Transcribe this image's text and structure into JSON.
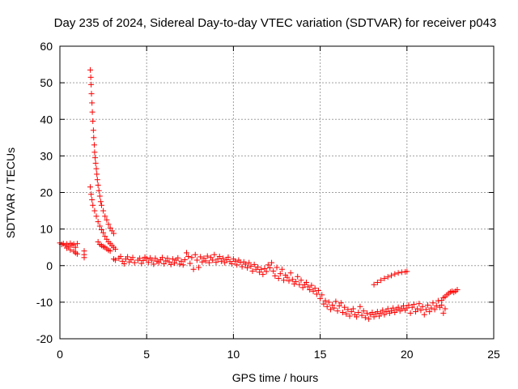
{
  "chart_data": {
    "type": "scatter",
    "title": "Day 235 of 2024, Sidereal Day-to-day VTEC variation (SDTVAR) for receiver p043",
    "xlabel": "GPS time / hours",
    "ylabel": "SDTVAR / TECUs",
    "xlim": [
      0,
      25
    ],
    "ylim": [
      -20,
      60
    ],
    "xticks": [
      0,
      5,
      10,
      15,
      20,
      25
    ],
    "yticks": [
      -20,
      -10,
      0,
      10,
      20,
      30,
      40,
      50,
      60
    ],
    "grid": true,
    "marker": "+",
    "color": "#ff0000",
    "series": [
      {
        "name": "SDTVAR",
        "points": [
          [
            0.0,
            6.2
          ],
          [
            0.1,
            5.8
          ],
          [
            0.2,
            6.0
          ],
          [
            0.3,
            5.5
          ],
          [
            0.4,
            5.9
          ],
          [
            0.5,
            5.2
          ],
          [
            0.6,
            6.1
          ],
          [
            0.7,
            5.6
          ],
          [
            0.8,
            5.9
          ],
          [
            0.9,
            5.0
          ],
          [
            1.0,
            6.0
          ],
          [
            0.4,
            4.8
          ],
          [
            0.6,
            4.3
          ],
          [
            0.8,
            3.9
          ],
          [
            0.9,
            3.5
          ],
          [
            1.0,
            3.2
          ],
          [
            1.4,
            4.0
          ],
          [
            1.4,
            3.0
          ],
          [
            1.4,
            2.2
          ],
          [
            1.75,
            53.5
          ],
          [
            1.78,
            51.5
          ],
          [
            1.8,
            49.5
          ],
          [
            1.82,
            47.0
          ],
          [
            1.85,
            44.5
          ],
          [
            1.87,
            42.0
          ],
          [
            1.9,
            39.5
          ],
          [
            1.93,
            37.0
          ],
          [
            1.95,
            35.0
          ],
          [
            1.98,
            33.0
          ],
          [
            2.0,
            31.0
          ],
          [
            2.03,
            29.5
          ],
          [
            2.06,
            28.0
          ],
          [
            2.1,
            26.5
          ],
          [
            2.13,
            25.0
          ],
          [
            2.16,
            23.5
          ],
          [
            2.2,
            22.0
          ],
          [
            2.25,
            20.5
          ],
          [
            2.3,
            19.0
          ],
          [
            2.35,
            17.5
          ],
          [
            2.4,
            16.5
          ],
          [
            2.5,
            15.0
          ],
          [
            2.6,
            13.5
          ],
          [
            2.7,
            12.5
          ],
          [
            2.8,
            11.3
          ],
          [
            2.9,
            10.3
          ],
          [
            3.0,
            9.5
          ],
          [
            3.1,
            8.8
          ],
          [
            1.75,
            21.5
          ],
          [
            1.8,
            19.5
          ],
          [
            1.85,
            18.0
          ],
          [
            1.9,
            16.5
          ],
          [
            2.0,
            15.0
          ],
          [
            2.1,
            13.5
          ],
          [
            2.2,
            12.0
          ],
          [
            2.3,
            10.8
          ],
          [
            2.4,
            9.8
          ],
          [
            2.5,
            9.0
          ],
          [
            2.6,
            8.0
          ],
          [
            2.7,
            7.2
          ],
          [
            2.8,
            6.5
          ],
          [
            2.9,
            6.0
          ],
          [
            3.0,
            5.5
          ],
          [
            3.1,
            5.0
          ],
          [
            3.2,
            4.5
          ],
          [
            2.2,
            6.5
          ],
          [
            2.3,
            5.8
          ],
          [
            2.4,
            5.5
          ],
          [
            2.5,
            5.2
          ],
          [
            2.6,
            5.0
          ],
          [
            2.7,
            4.6
          ],
          [
            2.8,
            4.2
          ],
          [
            2.9,
            4.0
          ],
          [
            3.1,
            1.8
          ],
          [
            3.2,
            1.5
          ],
          [
            3.4,
            2.0
          ],
          [
            3.5,
            2.5
          ],
          [
            3.6,
            1.2
          ],
          [
            3.7,
            0.5
          ],
          [
            3.8,
            1.8
          ],
          [
            3.9,
            2.4
          ],
          [
            4.0,
            1.0
          ],
          [
            4.1,
            1.6
          ],
          [
            4.2,
            2.2
          ],
          [
            4.3,
            0.8
          ],
          [
            4.5,
            1.5
          ],
          [
            4.6,
            2.0
          ],
          [
            4.7,
            0.6
          ],
          [
            4.8,
            1.4
          ],
          [
            4.9,
            2.3
          ],
          [
            5.0,
            1.9
          ],
          [
            5.1,
            0.9
          ],
          [
            5.2,
            2.1
          ],
          [
            5.3,
            1.5
          ],
          [
            5.4,
            0.4
          ],
          [
            5.5,
            2.0
          ],
          [
            5.6,
            1.2
          ],
          [
            5.7,
            0.8
          ],
          [
            5.8,
            1.6
          ],
          [
            5.9,
            2.2
          ],
          [
            6.0,
            0.5
          ],
          [
            6.1,
            1.3
          ],
          [
            6.2,
            2.0
          ],
          [
            6.3,
            1.0
          ],
          [
            6.4,
            0.3
          ],
          [
            6.5,
            1.8
          ],
          [
            6.6,
            0.7
          ],
          [
            6.7,
            1.5
          ],
          [
            6.8,
            2.1
          ],
          [
            6.9,
            0.4
          ],
          [
            7.0,
            1.2
          ],
          [
            7.1,
            0.2
          ],
          [
            7.2,
            1.6
          ],
          [
            7.3,
            3.5
          ],
          [
            7.4,
            2.5
          ],
          [
            7.5,
            0.6
          ],
          [
            7.6,
            2.2
          ],
          [
            7.7,
            -1.0
          ],
          [
            7.8,
            3.0
          ],
          [
            7.9,
            1.5
          ],
          [
            8.0,
            -0.5
          ],
          [
            8.1,
            2.4
          ],
          [
            8.2,
            1.0
          ],
          [
            8.3,
            2.0
          ],
          [
            8.4,
            1.3
          ],
          [
            8.5,
            2.6
          ],
          [
            8.6,
            0.8
          ],
          [
            8.7,
            2.2
          ],
          [
            8.8,
            1.5
          ],
          [
            8.9,
            3.0
          ],
          [
            9.0,
            0.9
          ],
          [
            9.1,
            1.8
          ],
          [
            9.2,
            2.5
          ],
          [
            9.3,
            1.2
          ],
          [
            9.4,
            2.0
          ],
          [
            9.5,
            0.8
          ],
          [
            9.6,
            1.6
          ],
          [
            9.7,
            2.3
          ],
          [
            9.8,
            1.1
          ],
          [
            9.9,
            0.5
          ],
          [
            10.0,
            1.8
          ],
          [
            10.1,
            1.2
          ],
          [
            10.2,
            0.2
          ],
          [
            10.3,
            1.5
          ],
          [
            10.4,
            0.9
          ],
          [
            10.5,
            -0.3
          ],
          [
            10.6,
            1.0
          ],
          [
            10.7,
            0.4
          ],
          [
            10.8,
            -0.6
          ],
          [
            10.9,
            0.8
          ],
          [
            11.0,
            -0.2
          ],
          [
            11.1,
            -1.5
          ],
          [
            11.2,
            0.3
          ],
          [
            11.3,
            -1.0
          ],
          [
            11.4,
            -0.4
          ],
          [
            11.5,
            -1.8
          ],
          [
            11.6,
            -1.0
          ],
          [
            11.7,
            -2.4
          ],
          [
            11.8,
            -0.8
          ],
          [
            11.9,
            -1.6
          ],
          [
            12.0,
            0.2
          ],
          [
            12.1,
            -0.6
          ],
          [
            12.2,
            0.8
          ],
          [
            12.3,
            -1.5
          ],
          [
            12.4,
            -2.8
          ],
          [
            12.5,
            -0.5
          ],
          [
            12.6,
            -3.5
          ],
          [
            12.7,
            -2.2
          ],
          [
            12.8,
            -1.0
          ],
          [
            12.9,
            -4.0
          ],
          [
            13.0,
            -2.6
          ],
          [
            13.1,
            -3.2
          ],
          [
            13.2,
            -4.2
          ],
          [
            13.3,
            -2.0
          ],
          [
            13.4,
            -3.8
          ],
          [
            13.5,
            -5.0
          ],
          [
            13.6,
            -4.4
          ],
          [
            13.7,
            -3.0
          ],
          [
            13.8,
            -5.2
          ],
          [
            13.9,
            -4.0
          ],
          [
            14.0,
            -6.0
          ],
          [
            14.1,
            -5.2
          ],
          [
            14.2,
            -4.6
          ],
          [
            14.3,
            -5.8
          ],
          [
            14.4,
            -6.6
          ],
          [
            14.5,
            -5.4
          ],
          [
            14.6,
            -7.0
          ],
          [
            14.7,
            -6.2
          ],
          [
            14.8,
            -7.8
          ],
          [
            14.9,
            -6.8
          ],
          [
            15.0,
            -9.0
          ],
          [
            15.1,
            -8.0
          ],
          [
            15.2,
            -10.5
          ],
          [
            15.3,
            -9.6
          ],
          [
            15.4,
            -11.2
          ],
          [
            15.5,
            -10.0
          ],
          [
            15.6,
            -12.0
          ],
          [
            15.7,
            -10.8
          ],
          [
            15.8,
            -11.6
          ],
          [
            15.9,
            -9.8
          ],
          [
            16.0,
            -12.4
          ],
          [
            16.1,
            -11.0
          ],
          [
            16.2,
            -10.2
          ],
          [
            16.3,
            -12.8
          ],
          [
            16.4,
            -11.4
          ],
          [
            16.5,
            -13.2
          ],
          [
            16.6,
            -12.0
          ],
          [
            16.7,
            -13.8
          ],
          [
            16.8,
            -12.6
          ],
          [
            16.9,
            -11.8
          ],
          [
            17.0,
            -13.4
          ],
          [
            17.1,
            -14.0
          ],
          [
            17.2,
            -12.8
          ],
          [
            17.3,
            -11.2
          ],
          [
            17.4,
            -13.6
          ],
          [
            17.5,
            -12.4
          ],
          [
            17.6,
            -14.2
          ],
          [
            17.7,
            -13.0
          ],
          [
            17.8,
            -14.6
          ],
          [
            17.9,
            -13.4
          ],
          [
            18.0,
            -12.8
          ],
          [
            18.1,
            -14.0
          ],
          [
            18.2,
            -13.2
          ],
          [
            18.3,
            -12.6
          ],
          [
            18.4,
            -13.8
          ],
          [
            18.5,
            -13.0
          ],
          [
            18.6,
            -12.2
          ],
          [
            18.7,
            -13.4
          ],
          [
            18.8,
            -12.6
          ],
          [
            18.9,
            -11.8
          ],
          [
            19.0,
            -13.0
          ],
          [
            19.1,
            -12.4
          ],
          [
            19.2,
            -11.6
          ],
          [
            19.3,
            -12.8
          ],
          [
            19.4,
            -12.0
          ],
          [
            19.5,
            -11.4
          ],
          [
            19.6,
            -12.4
          ],
          [
            19.7,
            -11.8
          ],
          [
            19.8,
            -11.0
          ],
          [
            19.9,
            -12.2
          ],
          [
            20.0,
            -11.6
          ],
          [
            20.1,
            -10.8
          ],
          [
            20.2,
            -13.0
          ],
          [
            20.3,
            -11.4
          ],
          [
            20.4,
            -10.6
          ],
          [
            20.5,
            -12.6
          ],
          [
            20.6,
            -11.8
          ],
          [
            20.7,
            -10.4
          ],
          [
            20.8,
            -12.2
          ],
          [
            20.9,
            -11.2
          ],
          [
            21.0,
            -13.4
          ],
          [
            21.1,
            -12.0
          ],
          [
            21.2,
            -10.8
          ],
          [
            21.3,
            -12.6
          ],
          [
            21.4,
            -11.6
          ],
          [
            21.5,
            -10.2
          ],
          [
            21.6,
            -12.0
          ],
          [
            21.7,
            -11.0
          ],
          [
            21.8,
            -9.6
          ],
          [
            21.9,
            -11.4
          ],
          [
            22.0,
            -10.8
          ],
          [
            22.1,
            -13.0
          ],
          [
            22.2,
            -11.8
          ],
          [
            18.1,
            -5.2
          ],
          [
            18.3,
            -4.6
          ],
          [
            18.5,
            -4.0
          ],
          [
            18.7,
            -3.5
          ],
          [
            18.9,
            -3.1
          ],
          [
            19.1,
            -2.7
          ],
          [
            19.3,
            -2.3
          ],
          [
            19.5,
            -2.0
          ],
          [
            19.7,
            -1.8
          ],
          [
            19.9,
            -1.7
          ],
          [
            20.0,
            -1.6
          ],
          [
            22.0,
            -9.5
          ],
          [
            22.1,
            -8.8
          ],
          [
            22.2,
            -8.5
          ],
          [
            22.3,
            -8.0
          ],
          [
            22.4,
            -7.6
          ],
          [
            22.5,
            -7.2
          ],
          [
            22.6,
            -7.0
          ],
          [
            22.7,
            -7.3
          ],
          [
            22.8,
            -7.0
          ],
          [
            22.9,
            -6.6
          ]
        ]
      }
    ]
  }
}
